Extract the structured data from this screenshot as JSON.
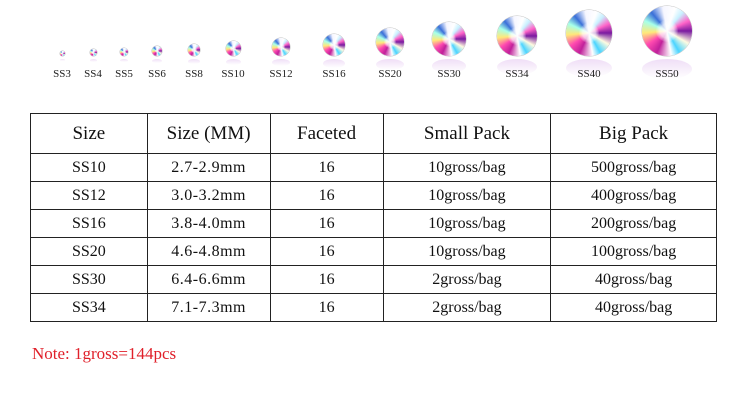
{
  "stones": [
    {
      "label": "SS3"
    },
    {
      "label": "SS4"
    },
    {
      "label": "SS5"
    },
    {
      "label": "SS6"
    },
    {
      "label": "SS8"
    },
    {
      "label": "SS10"
    },
    {
      "label": "SS12"
    },
    {
      "label": "SS16"
    },
    {
      "label": "SS20"
    },
    {
      "label": "SS30"
    },
    {
      "label": "SS34"
    },
    {
      "label": "SS40"
    },
    {
      "label": "SS50"
    }
  ],
  "table": {
    "headers": [
      "Size",
      "Size (MM)",
      "Faceted",
      "Small Pack",
      "Big Pack"
    ],
    "rows": [
      [
        "SS10",
        "2.7-2.9mm",
        "16",
        "10gross/bag",
        "500gross/bag"
      ],
      [
        "SS12",
        "3.0-3.2mm",
        "16",
        "10gross/bag",
        "400gross/bag"
      ],
      [
        "SS16",
        "3.8-4.0mm",
        "16",
        "10gross/bag",
        "200gross/bag"
      ],
      [
        "SS20",
        "4.6-4.8mm",
        "16",
        "10gross/bag",
        "100gross/bag"
      ],
      [
        "SS30",
        "6.4-6.6mm",
        "16",
        "2gross/bag",
        "40gross/bag"
      ],
      [
        "SS34",
        "7.1-7.3mm",
        "16",
        "2gross/bag",
        "40gross/bag"
      ]
    ]
  },
  "note": "Note: 1gross=144pcs",
  "colors": {
    "note": "#e0202a",
    "border": "#222222"
  }
}
